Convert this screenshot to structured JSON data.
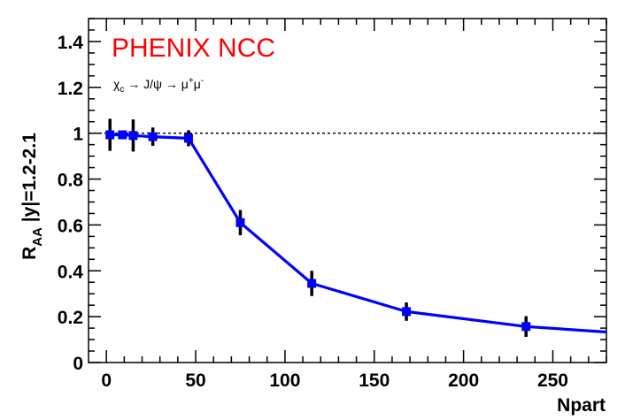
{
  "chart_data": {
    "type": "line",
    "title": "PHENIX NCC",
    "subtitle": "χc → J/ψ → μ+μ-",
    "subtitle_parts": {
      "chi": "χ",
      "chi_sub": "c",
      "arrow1": " → J/ψ → ",
      "mu1": "μ",
      "mu1_sup": "+",
      "mu2": "μ",
      "mu2_sup": "-"
    },
    "xlabel": "Npart",
    "ylabel": {
      "R": "R",
      "sub": "AA",
      "rest": " |y|=1.2-2.1"
    },
    "xlim": [
      -10,
      280
    ],
    "ylim": [
      0,
      1.5
    ],
    "xticks": [
      0,
      50,
      100,
      150,
      200,
      250
    ],
    "yticks": [
      0,
      0.2,
      0.4,
      0.6,
      0.8,
      1,
      1.2,
      1.4
    ],
    "xtick_labels": [
      "0",
      "50",
      "100",
      "150",
      "200",
      "250"
    ],
    "ytick_labels": [
      "0",
      "0.2",
      "0.4",
      "0.6",
      "0.8",
      "1",
      "1.2",
      "1.4"
    ],
    "reference_line": 1.0,
    "series": [
      {
        "name": "R_AA",
        "color": "#0000ff",
        "x": [
          2,
          9,
          15,
          26,
          46,
          75,
          115,
          168,
          235,
          280
        ],
        "y": [
          0.993,
          0.993,
          0.99,
          0.985,
          0.978,
          0.61,
          0.345,
          0.222,
          0.157,
          0.133
        ],
        "yerr": [
          0.07,
          0.01,
          0.07,
          0.04,
          0.035,
          0.055,
          0.055,
          0.04,
          0.045,
          0
        ],
        "markers": [
          true,
          true,
          true,
          true,
          true,
          true,
          true,
          true,
          true,
          false
        ]
      }
    ]
  }
}
